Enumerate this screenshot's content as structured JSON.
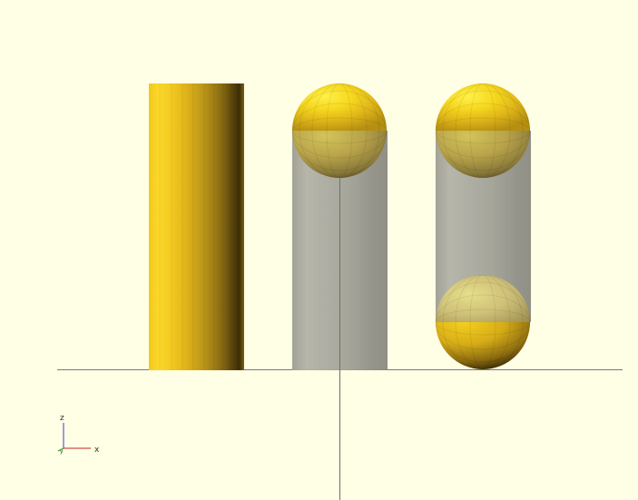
{
  "viewport": {
    "background": "#ffffe5",
    "objects": [
      {
        "kind": "cylinder",
        "color": "yellow",
        "render": "solid"
      },
      {
        "kind": "cylinder",
        "color": "gray",
        "render": "transparent",
        "caps": [
          "sphere-top"
        ]
      },
      {
        "kind": "cylinder",
        "color": "gray",
        "render": "transparent",
        "caps": [
          "sphere-top",
          "sphere-bottom"
        ]
      }
    ]
  },
  "axes_indicator": {
    "z_label": "z",
    "x_label": "x",
    "y_label": "y"
  },
  "colors": {
    "background": "#ffffe5",
    "axis_line": "#7a7a7a",
    "sphere_yellow": "#f5d51e",
    "ghost_gray": "#a8a89c"
  }
}
